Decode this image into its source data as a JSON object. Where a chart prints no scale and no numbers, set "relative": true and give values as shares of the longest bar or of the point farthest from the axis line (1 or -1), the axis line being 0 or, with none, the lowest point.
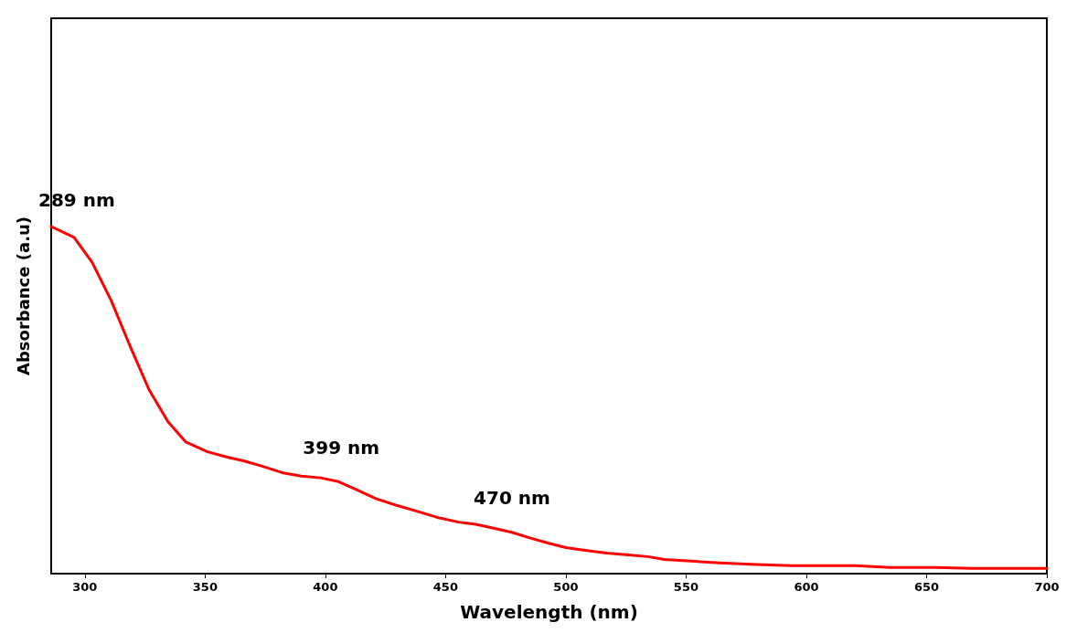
{
  "chart_data": {
    "type": "line",
    "xlabel": "Wavelength (nm)",
    "ylabel": "Absorbance (a.u)",
    "relative": true,
    "grid": false,
    "marker": "none",
    "line_style": "solid",
    "xlim": [
      286,
      700
    ],
    "xticks": [
      300,
      350,
      400,
      450,
      500,
      550,
      600,
      650,
      700
    ],
    "series": [
      {
        "color": "#ff0000",
        "x": [
          286,
          295.5,
          303,
          311,
          319,
          326.6,
          334.5,
          342,
          351,
          359.6,
          366,
          374,
          382,
          390,
          398,
          405.5,
          413,
          421,
          429,
          438,
          446.5,
          455,
          462.5,
          470,
          477.5,
          485,
          492.5,
          500,
          508,
          517,
          526,
          534,
          541,
          552,
          564,
          579,
          594,
          620,
          635,
          654,
          668.6,
          700
        ],
        "values": [
          1.0,
          0.969,
          0.897,
          0.786,
          0.652,
          0.531,
          0.438,
          0.379,
          0.351,
          0.335,
          0.325,
          0.309,
          0.291,
          0.281,
          0.276,
          0.265,
          0.242,
          0.216,
          0.198,
          0.18,
          0.162,
          0.149,
          0.142,
          0.131,
          0.119,
          0.103,
          0.088,
          0.075,
          0.067,
          0.059,
          0.054,
          0.049,
          0.041,
          0.036,
          0.031,
          0.026,
          0.023,
          0.023,
          0.018,
          0.018,
          0.015,
          0.015
        ]
      }
    ],
    "annotations": [
      {
        "text": "289 nm",
        "x": 289,
        "y": 0.99
      },
      {
        "text": "399 nm",
        "x": 399,
        "y": 0.276
      },
      {
        "text": "470 nm",
        "x": 470,
        "y": 0.131
      }
    ]
  }
}
